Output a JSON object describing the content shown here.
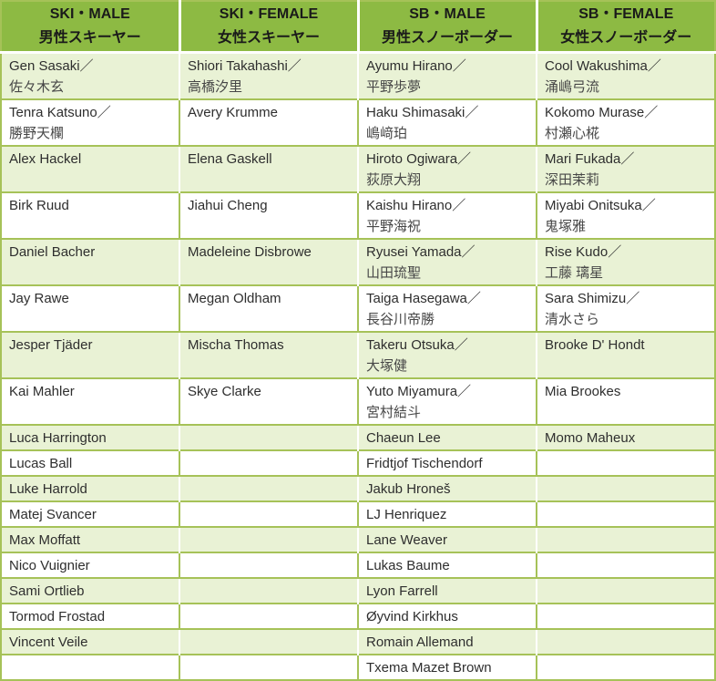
{
  "colors": {
    "header_bg": "#8dba43",
    "grid_green": "#a6c258",
    "row_green": "#e9f2d5",
    "row_white": "#ffffff",
    "text": "#2e2e2e",
    "text_ja": "#474747",
    "header_text": "#1a1a1a"
  },
  "table": {
    "headers": [
      {
        "en": "SKI・MALE",
        "ja": "男性スキーヤー"
      },
      {
        "en": "SKI・FEMALE",
        "ja": "女性スキーヤー"
      },
      {
        "en": "SB・MALE",
        "ja": "男性スノーボーダー"
      },
      {
        "en": "SB・FEMALE",
        "ja": "女性スノーボーダー"
      }
    ],
    "rows": [
      [
        [
          "Gen Sasaki／",
          "佐々木玄"
        ],
        [
          "Shiori Takahashi／",
          "高橋汐里"
        ],
        [
          "Ayumu Hirano／",
          "平野歩夢"
        ],
        [
          "Cool Wakushima／",
          "涌嶋弓流"
        ]
      ],
      [
        [
          "Tenra Katsuno／",
          "勝野天欄"
        ],
        [
          "Avery Krumme"
        ],
        [
          "Haku Shimasaki／",
          "嶋﨑珀"
        ],
        [
          "Kokomo Murase／",
          "村瀬心椛"
        ]
      ],
      [
        [
          "Alex Hackel"
        ],
        [
          "Elena Gaskell"
        ],
        [
          "Hiroto Ogiwara／",
          "荻原大翔"
        ],
        [
          "Mari Fukada／",
          "深田茉莉"
        ]
      ],
      [
        [
          "Birk Ruud"
        ],
        [
          "Jiahui Cheng"
        ],
        [
          "Kaishu Hirano／",
          "平野海祝"
        ],
        [
          "Miyabi Onitsuka／",
          "鬼塚雅"
        ]
      ],
      [
        [
          "Daniel Bacher"
        ],
        [
          "Madeleine Disbrowe"
        ],
        [
          "Ryusei Yamada／",
          "山田琉聖"
        ],
        [
          "Rise Kudo／",
          "工藤 璃星"
        ]
      ],
      [
        [
          "Jay Rawe"
        ],
        [
          "Megan Oldham"
        ],
        [
          "Taiga Hasegawa／",
          "長谷川帝勝"
        ],
        [
          "Sara Shimizu／",
          "清水さら"
        ]
      ],
      [
        [
          "Jesper Tjäder"
        ],
        [
          "Mischa Thomas"
        ],
        [
          "Takeru Otsuka／",
          "大塚健"
        ],
        [
          "Brooke D' Hondt"
        ]
      ],
      [
        [
          "Kai Mahler"
        ],
        [
          "Skye Clarke"
        ],
        [
          "Yuto Miyamura／",
          "宮村結斗"
        ],
        [
          "Mia Brookes"
        ]
      ],
      [
        [
          "Luca Harrington"
        ],
        [],
        [
          "Chaeun Lee"
        ],
        [
          "Momo Maheux"
        ]
      ],
      [
        [
          "Lucas Ball"
        ],
        [],
        [
          "Fridtjof Tischendorf"
        ],
        []
      ],
      [
        [
          "Luke Harrold"
        ],
        [],
        [
          "Jakub Hroneš"
        ],
        []
      ],
      [
        [
          "Matej Svancer"
        ],
        [],
        [
          "LJ Henriquez"
        ],
        []
      ],
      [
        [
          "Max Moffatt"
        ],
        [],
        [
          "Lane Weaver"
        ],
        []
      ],
      [
        [
          "Nico Vuignier"
        ],
        [],
        [
          "Lukas Baume"
        ],
        []
      ],
      [
        [
          "Sami Ortlieb"
        ],
        [],
        [
          "Lyon Farrell"
        ],
        []
      ],
      [
        [
          "Tormod Frostad"
        ],
        [],
        [
          "Øyvind Kirkhus"
        ],
        []
      ],
      [
        [
          "Vincent Veile"
        ],
        [],
        [
          "Romain Allemand"
        ],
        []
      ],
      [
        [],
        [],
        [
          "Txema Mazet Brown"
        ],
        []
      ]
    ]
  }
}
